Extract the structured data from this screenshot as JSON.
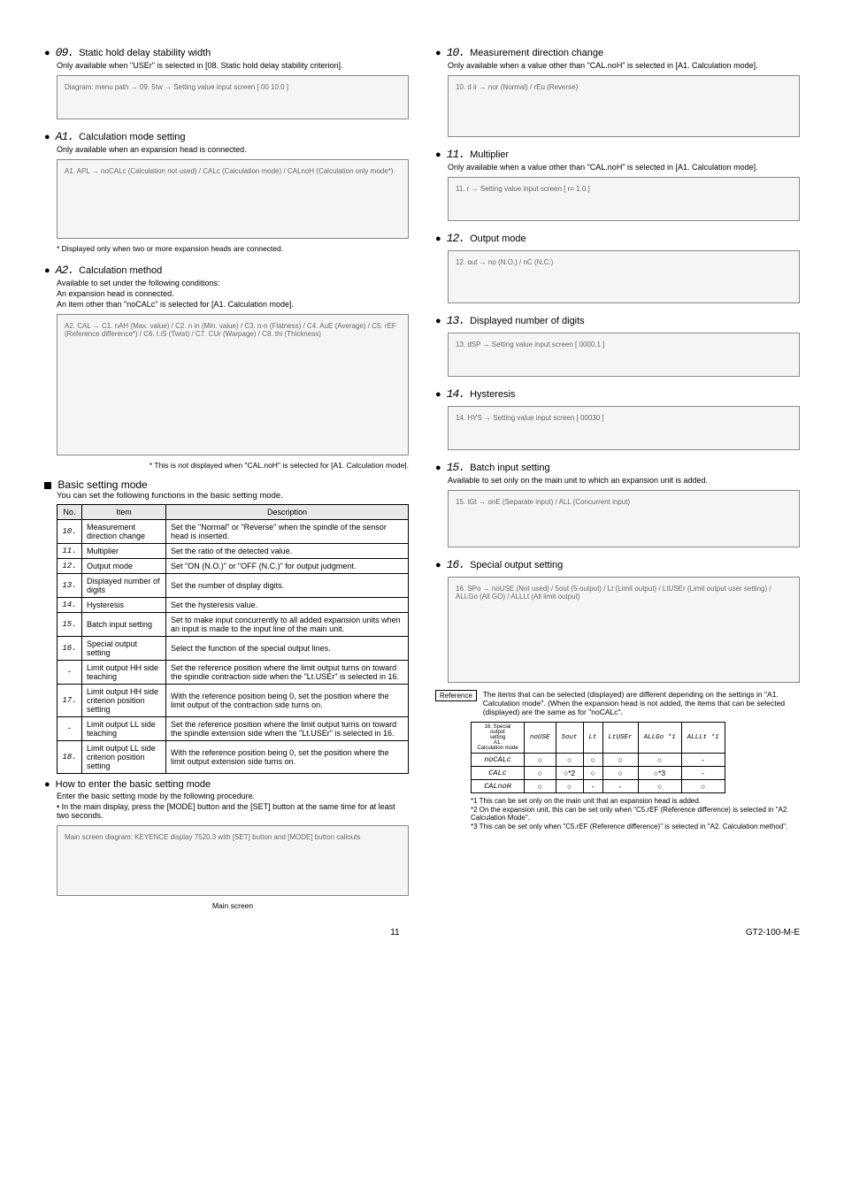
{
  "left": {
    "sec09": {
      "num": "09.",
      "title": "Static hold delay stability width",
      "sub": "Only available when \"USEr\" is selected in [08. Static hold delay stability criterion].",
      "diag": "Diagram: menu path → 09. 5tw → Setting value input screen [ 00 10.0 ]"
    },
    "secA1": {
      "num": "A1.",
      "title": "Calculation mode setting",
      "sub": "Only available when an expansion head is connected.",
      "diag": "A1. APL → noCALc (Calculation not used) / CALc (Calculation mode) / CALnoH (Calculation only mode*)",
      "note": "* Displayed only when two or more expansion heads are connected."
    },
    "secA2": {
      "num": "A2.",
      "title": "Calculation method",
      "sub1": "Available to set under the following conditions:",
      "sub2": "An expansion head is connected.",
      "sub3": "An item other than \"noCALc\" is selected for [A1. Calculation mode].",
      "diag": "A2. CAL → C1. nAH (Max. value) / C2. n in (Min. value) / C3. n-n (Flatness) / C4. AuE (Average) / C5. rEF (Reference difference*) / C6. t.iS (Twist) / C7. CUr (Warpage) / C8. thi (Thickness)",
      "note": "* This is not displayed when \"CAL.noH\" is selected for [A1. Calculation mode]."
    },
    "basicMode": {
      "title": "Basic setting mode",
      "sub": "You can set the following functions in the basic setting mode.",
      "headers": [
        "No.",
        "Item",
        "Description"
      ],
      "rows": [
        [
          "10.",
          "Measurement direction change",
          "Set the \"Normal\" or \"Reverse\" when the spindle of the sensor head is inserted."
        ],
        [
          "11.",
          "Multiplier",
          "Set the ratio of the detected value."
        ],
        [
          "12.",
          "Output mode",
          "Set \"ON (N.O.)\" or \"OFF (N.C.)\" for output judgment."
        ],
        [
          "13.",
          "Displayed number of digits",
          "Set the number of display digits."
        ],
        [
          "14.",
          "Hysteresis",
          "Set the hysteresis value."
        ],
        [
          "15.",
          "Batch input setting",
          "Set to make input concurrently to all added expansion units when an input is made to the input line of the main unit."
        ],
        [
          "16.",
          "Special output setting",
          "Select the function of the special output lines."
        ],
        [
          "-",
          "Limit output HH side teaching",
          "Set the reference position where the limit output turns on toward the spindle contraction side when the \"Lt.USEr\" is selected in 16."
        ],
        [
          "17.",
          "Limit output HH side criterion position setting",
          "With the reference position being 0, set the position where the limit output of the contraction side turns on."
        ],
        [
          "-",
          "Limit output LL side teaching",
          "Set the reference position where the limit output turns on toward the spindle extension side when the \"Lt.USEr\" is selected in 16."
        ],
        [
          "18.",
          "Limit output LL side criterion position setting",
          "With the reference position being 0, set the position where the limit output extension side turns on."
        ]
      ],
      "howTitle": "How to enter the basic setting mode",
      "howText1": "Enter the basic setting mode by the following procedure.",
      "howText2": "• In the main display, press the [MODE] button and the [SET] button at the same time for at least two seconds.",
      "diag": "Main screen diagram: KEYENCE display 7520.3 with [SET] button and [MODE] button callouts",
      "diagCaption": "Main screen"
    }
  },
  "right": {
    "sec10": {
      "num": "10.",
      "title": "Measurement direction change",
      "sub": "Only available when a value other than \"CAL.noH\" is selected in [A1. Calculation mode].",
      "diag": "10. d ir → nor (Normal) / rEu (Reverse)"
    },
    "sec11": {
      "num": "11.",
      "title": "Multiplier",
      "sub": "Only available when a value other than \"CAL.noH\" is selected in [A1. Calculation mode].",
      "diag": "11. r → Setting value input screen [ r= 1.0 ]"
    },
    "sec12": {
      "num": "12.",
      "title": "Output mode",
      "diag": "12. out → no (N.O.) / nC (N.C.)"
    },
    "sec13": {
      "num": "13.",
      "title": "Displayed number of digits",
      "diag": "13. dSP → Setting value input screen [ 0000.1 ]"
    },
    "sec14": {
      "num": "14.",
      "title": "Hysteresis",
      "diag": "14. HYS → Setting value input screen [ 00030 ]"
    },
    "sec15": {
      "num": "15.",
      "title": "Batch input setting",
      "sub": "Available to set only on the main unit to which an expansion unit is added.",
      "diag": "15. tGt → onE (Separate input) / ALL (Concurrent input)"
    },
    "sec16": {
      "num": "16.",
      "title": "Special output setting",
      "diag": "16. SPo → noUSE (Not used) / 5out (5-output) / Lt (Limit output) / LtUSEr (Limit output user setting) / ALLGo (All GO) / ALLLt (All limit output)"
    },
    "reference": {
      "label": "Reference",
      "text": "The items that can be selected (displayed) are different depending on the settings in \"A1. Calculation mode\". (When the expansion head is not added, the items that can be selected (displayed) are the same as for \"noCALc\".",
      "headers": [
        "",
        "noUSE",
        "5out",
        "Lt",
        "LtUSEr",
        "ALLGo *1",
        "ALLLt *1"
      ],
      "rowLabel": "A1. Calculation mode \\ 16. Special output setting",
      "rows": [
        [
          "noCALc",
          "○",
          "○",
          "○",
          "○",
          "○",
          "-"
        ],
        [
          "CALc",
          "○",
          "○*2",
          "○",
          "○",
          "○*3",
          "-"
        ],
        [
          "CALnoH",
          "○",
          "○",
          "-",
          "-",
          "○",
          "○"
        ]
      ],
      "footnotes": [
        "*1  This can be set only on the main unit that an expansion head is added.",
        "*2  On the expansion unit, this can be set only when \"C5.rEF (Reference difference) is selected in \"A2. Calculation Mode\".",
        "*3  This can be set only when \"C5.rEF (Reference difference)\" is selected in \"A2. Calculation method\"."
      ]
    }
  },
  "footer": {
    "page": "11",
    "doc": "GT2-100-M-E"
  }
}
